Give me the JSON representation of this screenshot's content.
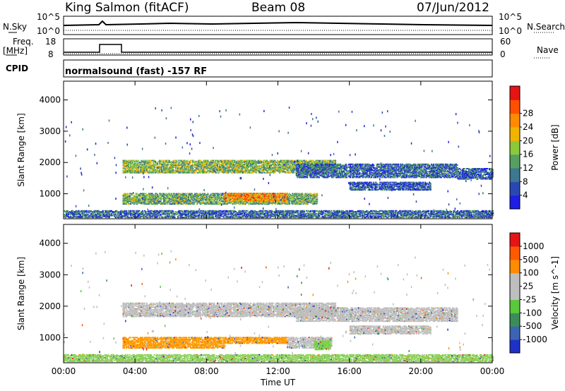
{
  "header": {
    "station": "King Salmon (fitACF)",
    "beam": "Beam 08",
    "date": "07/Jun/2012"
  },
  "top_panels": {
    "noise_left_label": "N.Sky",
    "noise_right_label": "N.Search",
    "noise_ticks": [
      "10^5",
      "10^0"
    ],
    "freq_left_label_1": "Freq.",
    "freq_left_label_2": "[MHz]",
    "freq_ticks": [
      "18",
      "8"
    ],
    "nave_label": "Nave",
    "nave_ticks": [
      "60",
      "0"
    ],
    "cpid_label": "CPID",
    "mode_text": "normalsound (fast) -157 RF"
  },
  "chart_data": [
    {
      "type": "heatmap",
      "name": "power",
      "ylabel": "Slant Range [km]",
      "yticks": [
        1000,
        2000,
        3000,
        4000
      ],
      "ylim": [
        200,
        4600
      ],
      "xlim": [
        0,
        24
      ],
      "xticks": [
        0,
        4,
        8,
        12,
        16,
        20,
        24
      ],
      "colorbar": {
        "label": "Power [dB]",
        "ticks": [
          "4",
          "8",
          "12",
          "16",
          "20",
          "24",
          "28"
        ],
        "colors": [
          "#1e1ee6",
          "#2a48b4",
          "#3c7890",
          "#55a060",
          "#8cc83c",
          "#f0b400",
          "#ff8c00",
          "#ff5000",
          "#e61414"
        ]
      },
      "bands": [
        {
          "t0": 3.3,
          "t1": 15.2,
          "range": [
            1650,
            2050
          ],
          "level": 0.45
        },
        {
          "t0": 13.0,
          "t1": 22.0,
          "range": [
            1500,
            1950
          ],
          "level": 0.2
        },
        {
          "t0": 22.0,
          "t1": 24.0,
          "range": [
            1450,
            1800
          ],
          "level": 0.15
        },
        {
          "t0": 3.3,
          "t1": 14.2,
          "range": [
            650,
            1000
          ],
          "level": 0.4
        },
        {
          "t0": 9.0,
          "t1": 12.5,
          "range": [
            750,
            1000
          ],
          "level": 0.75
        },
        {
          "t0": 16.0,
          "t1": 20.5,
          "range": [
            1100,
            1350
          ],
          "level": 0.15
        },
        {
          "t0": 0.0,
          "t1": 24.0,
          "range": [
            220,
            450
          ],
          "level": 0.2
        }
      ]
    },
    {
      "type": "heatmap",
      "name": "velocity",
      "ylabel": "Slant Range [km]",
      "xlabel": "Time UT",
      "yticks": [
        1000,
        2000,
        3000,
        4000
      ],
      "ylim": [
        200,
        4600
      ],
      "xlim": [
        0,
        24
      ],
      "xticks": [
        0,
        4,
        8,
        12,
        16,
        20,
        24
      ],
      "xticklabels": [
        "00:00",
        "04:00",
        "08:00",
        "12:00",
        "16:00",
        "20:00",
        "00:00"
      ],
      "colorbar": {
        "label": "Velocity [m s^-1]",
        "ticks": [
          "1000",
          "500",
          "100",
          "25",
          "-25",
          "-100",
          "-500",
          "-1000"
        ],
        "colors": [
          "#1e32c8",
          "#3c64b4",
          "#3c8c5a",
          "#5ac83c",
          "#bebebe",
          "#bebebe",
          "#ff8c00",
          "#ff5a00",
          "#e61414"
        ]
      },
      "bands": [
        {
          "t0": 3.3,
          "t1": 15.2,
          "range": [
            1650,
            2100
          ],
          "color": "#bebebe"
        },
        {
          "t0": 13.0,
          "t1": 22.0,
          "range": [
            1500,
            1950
          ],
          "color": "#bebebe"
        },
        {
          "t0": 3.3,
          "t1": 9.0,
          "range": [
            650,
            1000
          ],
          "color": "#ff9a00"
        },
        {
          "t0": 9.0,
          "t1": 12.5,
          "range": [
            800,
            1000
          ],
          "color": "#ff9a00"
        },
        {
          "t0": 12.5,
          "t1": 15.0,
          "range": [
            650,
            1000
          ],
          "color": "#bebebe"
        },
        {
          "t0": 14.0,
          "t1": 15.0,
          "range": [
            600,
            900
          ],
          "color": "#78d246"
        },
        {
          "t0": 16.0,
          "t1": 20.5,
          "range": [
            1100,
            1350
          ],
          "color": "#bebebe"
        },
        {
          "t0": 0.0,
          "t1": 24.0,
          "range": [
            220,
            450
          ],
          "color": "#8cd25a"
        }
      ]
    }
  ]
}
